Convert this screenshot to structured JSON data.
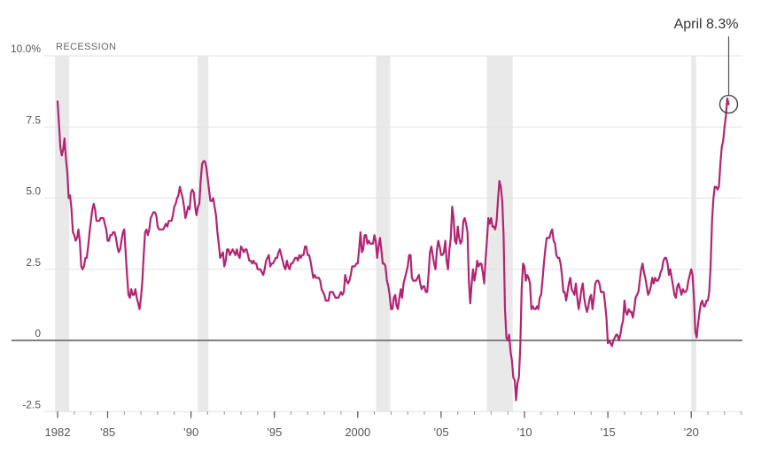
{
  "chart_data": {
    "type": "line",
    "description_labels": {
      "recession_label": "RECESSION",
      "annotation_text": "April 8.3%"
    },
    "annotation": {
      "text": "April 8.3%",
      "x": 2022.25,
      "y": 8.3
    },
    "x_start_year": 1982,
    "frequency": "monthly",
    "xlim": [
      1981.8,
      2023.2
    ],
    "ylim": [
      -2.5,
      10.0
    ],
    "grid": "horizontal",
    "legend_position": "none",
    "y_ticks": [
      {
        "value": 10.0,
        "label": "10.0%"
      },
      {
        "value": 7.5,
        "label": "7.5"
      },
      {
        "value": 5.0,
        "label": "5.0"
      },
      {
        "value": 2.5,
        "label": "2.5"
      },
      {
        "value": 0,
        "label": "0"
      },
      {
        "value": -2.5,
        "label": "-2.5"
      }
    ],
    "x_ticks_major": [
      {
        "year": 1982,
        "label": "1982"
      },
      {
        "year": 1985,
        "label": "’85"
      },
      {
        "year": 1990,
        "label": "’90"
      },
      {
        "year": 1995,
        "label": "’95"
      },
      {
        "year": 2000,
        "label": "2000"
      },
      {
        "year": 2005,
        "label": "’05"
      },
      {
        "year": 2010,
        "label": "’10"
      },
      {
        "year": 2015,
        "label": "’15"
      },
      {
        "year": 2020,
        "label": "’20"
      }
    ],
    "x_minor_ticks": {
      "from": 1982,
      "to": 2023,
      "step": 1
    },
    "recession_bands": [
      [
        1981.85,
        1982.7
      ],
      [
        1990.4,
        1991.05
      ],
      [
        2001.1,
        2001.95
      ],
      [
        2007.75,
        2009.3
      ],
      [
        2020.0,
        2020.3
      ]
    ],
    "values": [
      8.4,
      7.6,
      6.8,
      6.5,
      6.7,
      7.1,
      6.4,
      5.9,
      5.0,
      5.1,
      4.6,
      3.8,
      3.7,
      3.5,
      3.6,
      3.9,
      3.5,
      2.6,
      2.5,
      2.6,
      2.9,
      2.9,
      3.3,
      3.8,
      4.2,
      4.6,
      4.8,
      4.6,
      4.2,
      4.2,
      4.2,
      4.3,
      4.3,
      4.3,
      4.1,
      3.9,
      3.5,
      3.5,
      3.7,
      3.7,
      3.8,
      3.8,
      3.6,
      3.3,
      3.1,
      3.2,
      3.5,
      3.8,
      3.9,
      3.1,
      2.3,
      1.6,
      1.5,
      1.8,
      1.6,
      1.6,
      1.8,
      1.5,
      1.3,
      1.1,
      1.5,
      2.1,
      3.0,
      3.8,
      3.9,
      3.7,
      3.9,
      4.3,
      4.4,
      4.5,
      4.5,
      4.4,
      4.0,
      3.9,
      3.9,
      3.9,
      3.9,
      4.0,
      4.1,
      4.0,
      4.2,
      4.2,
      4.2,
      4.4,
      4.7,
      4.8,
      5.0,
      5.1,
      5.4,
      5.2,
      5.0,
      4.7,
      4.3,
      4.5,
      4.7,
      4.6,
      5.2,
      5.3,
      5.2,
      4.7,
      4.4,
      4.7,
      4.8,
      5.6,
      6.2,
      6.3,
      6.3,
      6.1,
      5.7,
      5.3,
      4.9,
      4.9,
      5.0,
      4.7,
      4.4,
      3.8,
      3.4,
      2.9,
      3.0,
      3.1,
      2.6,
      2.8,
      3.2,
      3.2,
      3.0,
      3.1,
      3.2,
      3.1,
      3.0,
      3.2,
      3.0,
      2.9,
      3.3,
      3.2,
      3.1,
      3.2,
      3.2,
      3.0,
      2.8,
      2.8,
      2.7,
      2.8,
      2.7,
      2.7,
      2.5,
      2.5,
      2.5,
      2.4,
      2.3,
      2.5,
      2.8,
      2.9,
      3.0,
      2.6,
      2.7,
      2.7,
      2.8,
      2.9,
      2.9,
      3.1,
      3.2,
      3.0,
      2.8,
      2.6,
      2.5,
      2.8,
      2.6,
      2.5,
      2.7,
      2.7,
      2.8,
      2.9,
      2.9,
      2.8,
      3.0,
      2.9,
      3.0,
      3.0,
      3.3,
      3.3,
      3.0,
      3.0,
      2.8,
      2.5,
      2.2,
      2.3,
      2.2,
      2.2,
      2.2,
      2.1,
      1.8,
      1.7,
      1.6,
      1.4,
      1.4,
      1.4,
      1.7,
      1.7,
      1.7,
      1.6,
      1.5,
      1.5,
      1.5,
      1.6,
      1.7,
      1.6,
      1.7,
      2.3,
      2.1,
      2.0,
      2.1,
      2.3,
      2.6,
      2.6,
      2.6,
      2.7,
      2.7,
      3.2,
      3.8,
      3.1,
      3.2,
      3.7,
      3.7,
      3.4,
      3.5,
      3.4,
      3.4,
      3.4,
      3.7,
      3.5,
      2.9,
      3.3,
      3.6,
      3.2,
      2.7,
      2.7,
      2.6,
      2.1,
      1.9,
      1.6,
      1.1,
      1.1,
      1.5,
      1.6,
      1.2,
      1.1,
      1.5,
      1.8,
      1.5,
      2.0,
      2.2,
      2.4,
      2.6,
      3.0,
      3.0,
      2.2,
      2.1,
      2.1,
      2.1,
      2.2,
      2.3,
      2.0,
      1.8,
      1.9,
      1.9,
      1.7,
      1.7,
      2.3,
      3.1,
      3.3,
      3.0,
      2.7,
      2.5,
      3.2,
      3.5,
      3.3,
      3.0,
      3.0,
      3.1,
      3.5,
      2.8,
      2.5,
      3.2,
      3.6,
      4.7,
      4.3,
      3.5,
      3.4,
      4.0,
      3.6,
      3.4,
      3.5,
      4.2,
      4.3,
      4.1,
      3.8,
      2.1,
      1.3,
      2.0,
      2.5,
      2.1,
      2.4,
      2.8,
      2.6,
      2.7,
      2.7,
      2.4,
      2.0,
      2.8,
      3.5,
      4.3,
      4.1,
      4.3,
      4.0,
      4.0,
      3.9,
      4.2,
      5.0,
      5.6,
      5.4,
      4.9,
      3.7,
      1.1,
      0.1,
      0.0,
      0.2,
      -0.4,
      -0.7,
      -1.3,
      -1.4,
      -2.1,
      -1.5,
      -1.3,
      -0.2,
      1.8,
      2.7,
      2.6,
      2.1,
      2.3,
      2.2,
      2.0,
      1.1,
      1.2,
      1.1,
      1.1,
      1.2,
      1.1,
      1.5,
      1.6,
      2.1,
      2.7,
      3.2,
      3.6,
      3.6,
      3.6,
      3.8,
      3.9,
      3.5,
      3.4,
      3.0,
      2.9,
      2.9,
      2.7,
      2.3,
      1.7,
      1.7,
      1.4,
      1.7,
      2.0,
      2.2,
      1.8,
      1.7,
      1.6,
      2.0,
      1.5,
      1.1,
      1.4,
      1.8,
      2.0,
      1.5,
      1.2,
      1.0,
      1.2,
      1.5,
      1.6,
      1.1,
      1.5,
      2.0,
      2.1,
      2.1,
      2.0,
      1.7,
      1.7,
      1.7,
      1.3,
      0.8,
      -0.1,
      0.0,
      -0.1,
      -0.2,
      0.0,
      0.1,
      0.2,
      0.2,
      0.0,
      0.2,
      0.5,
      0.7,
      1.4,
      1.0,
      0.9,
      1.1,
      1.0,
      1.0,
      0.8,
      1.1,
      1.5,
      1.6,
      1.7,
      2.1,
      2.5,
      2.7,
      2.4,
      2.2,
      1.9,
      1.6,
      1.7,
      1.9,
      2.2,
      2.0,
      2.2,
      2.1,
      2.1,
      2.2,
      2.4,
      2.5,
      2.8,
      2.9,
      2.9,
      2.7,
      2.3,
      2.5,
      2.2,
      1.9,
      1.6,
      1.5,
      1.9,
      2.0,
      1.8,
      1.6,
      1.8,
      1.7,
      1.7,
      1.8,
      2.1,
      2.3,
      2.5,
      2.3,
      1.5,
      0.3,
      0.1,
      0.6,
      1.0,
      1.3,
      1.4,
      1.2,
      1.2,
      1.4,
      1.4,
      1.7,
      2.6,
      4.2,
      5.0,
      5.4,
      5.4,
      5.3,
      5.4,
      6.2,
      6.8,
      7.0,
      7.5,
      7.9,
      8.5,
      8.3
    ],
    "colors": {
      "line": "#b12572",
      "grid": "#e3e3e3",
      "zero_line": "#808080",
      "recession_band": "#e9e9e9",
      "tick": "#999999",
      "tick_major": "#555555",
      "axis_text": "#555555",
      "annotation_text": "#333333",
      "annotation_line": "#555555"
    }
  }
}
